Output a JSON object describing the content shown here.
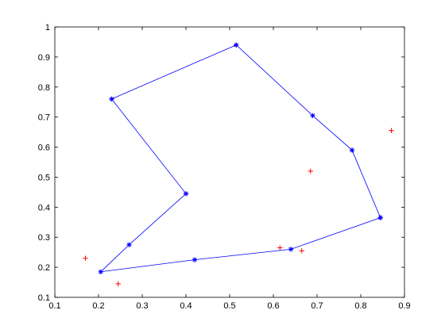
{
  "chart_data": {
    "type": "scatter",
    "title": "",
    "xlabel": "",
    "ylabel": "",
    "xlim": [
      0.1,
      0.9
    ],
    "ylim": [
      0.1,
      1.0
    ],
    "xticks": [
      0.1,
      0.2,
      0.3,
      0.4,
      0.5,
      0.6,
      0.7,
      0.8,
      0.9
    ],
    "yticks": [
      0.1,
      0.2,
      0.3,
      0.4,
      0.5,
      0.6,
      0.7,
      0.8,
      0.9,
      1.0
    ],
    "xtick_labels": [
      "0.1",
      "0.2",
      "0.3",
      "0.4",
      "0.5",
      "0.6",
      "0.7",
      "0.8",
      "0.9"
    ],
    "ytick_labels": [
      "0.1",
      "0.2",
      "0.3",
      "0.4",
      "0.5",
      "0.6",
      "0.7",
      "0.8",
      "0.9",
      "1"
    ],
    "grid": false,
    "legend": "none",
    "series": [
      {
        "marker": "+",
        "color": "#ff0000",
        "points": [
          [
            0.17,
            0.23
          ],
          [
            0.245,
            0.145
          ],
          [
            0.23,
            0.76
          ],
          [
            0.4,
            0.445
          ],
          [
            0.515,
            0.94
          ],
          [
            0.615,
            0.265
          ],
          [
            0.665,
            0.255
          ],
          [
            0.685,
            0.52
          ],
          [
            0.845,
            0.365
          ],
          [
            0.87,
            0.655
          ]
        ]
      },
      {
        "marker": "*",
        "line": true,
        "closed": true,
        "color": "#0000ff",
        "points": [
          [
            0.23,
            0.76
          ],
          [
            0.515,
            0.94
          ],
          [
            0.69,
            0.705
          ],
          [
            0.78,
            0.59
          ],
          [
            0.845,
            0.365
          ],
          [
            0.64,
            0.26
          ],
          [
            0.42,
            0.225
          ],
          [
            0.205,
            0.185
          ],
          [
            0.27,
            0.275
          ],
          [
            0.4,
            0.445
          ]
        ]
      }
    ]
  }
}
